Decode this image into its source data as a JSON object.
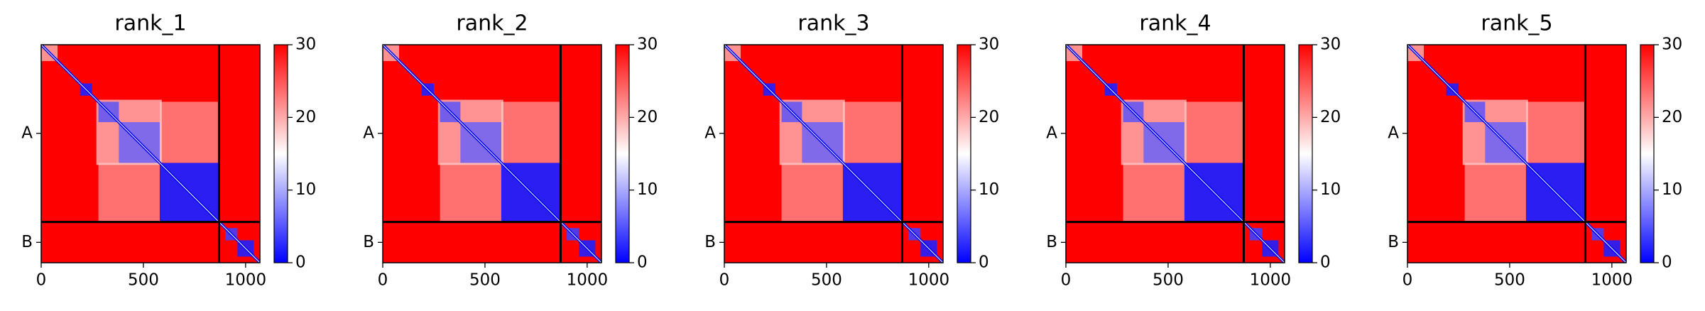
{
  "chart_data": [
    {
      "type": "heatmap",
      "title": "rank_1",
      "xlim": [
        0,
        1070
      ],
      "ylim": [
        1070,
        0
      ],
      "xticks": [
        0,
        500,
        1000
      ],
      "yticks": [
        {
          "value": 435,
          "label": "A"
        },
        {
          "value": 970,
          "label": "B"
        }
      ],
      "chain_breaks": [
        870
      ],
      "colorbar": {
        "lim": [
          0,
          30
        ],
        "ticks": [
          0,
          10,
          20,
          30
        ],
        "colors": [
          "#0000ff",
          "#ffffff",
          "#ff0000"
        ]
      }
    },
    {
      "type": "heatmap",
      "title": "rank_2",
      "xlim": [
        0,
        1070
      ],
      "ylim": [
        1070,
        0
      ],
      "xticks": [
        0,
        500,
        1000
      ],
      "yticks": [
        {
          "value": 435,
          "label": "A"
        },
        {
          "value": 970,
          "label": "B"
        }
      ],
      "chain_breaks": [
        870
      ],
      "colorbar": {
        "lim": [
          0,
          30
        ],
        "ticks": [
          0,
          10,
          20,
          30
        ],
        "colors": [
          "#0000ff",
          "#ffffff",
          "#ff0000"
        ]
      }
    },
    {
      "type": "heatmap",
      "title": "rank_3",
      "xlim": [
        0,
        1070
      ],
      "ylim": [
        1070,
        0
      ],
      "xticks": [
        0,
        500,
        1000
      ],
      "yticks": [
        {
          "value": 435,
          "label": "A"
        },
        {
          "value": 970,
          "label": "B"
        }
      ],
      "chain_breaks": [
        870
      ],
      "colorbar": {
        "lim": [
          0,
          30
        ],
        "ticks": [
          0,
          10,
          20,
          30
        ],
        "colors": [
          "#0000ff",
          "#ffffff",
          "#ff0000"
        ]
      }
    },
    {
      "type": "heatmap",
      "title": "rank_4",
      "xlim": [
        0,
        1070
      ],
      "ylim": [
        1070,
        0
      ],
      "xticks": [
        0,
        500,
        1000
      ],
      "yticks": [
        {
          "value": 435,
          "label": "A"
        },
        {
          "value": 970,
          "label": "B"
        }
      ],
      "chain_breaks": [
        870
      ],
      "colorbar": {
        "lim": [
          0,
          30
        ],
        "ticks": [
          0,
          10,
          20,
          30
        ],
        "colors": [
          "#0000ff",
          "#ffffff",
          "#ff0000"
        ]
      }
    },
    {
      "type": "heatmap",
      "title": "rank_5",
      "xlim": [
        0,
        1070
      ],
      "ylim": [
        1070,
        0
      ],
      "xticks": [
        0,
        500,
        1000
      ],
      "yticks": [
        {
          "value": 435,
          "label": "A"
        },
        {
          "value": 970,
          "label": "B"
        }
      ],
      "chain_breaks": [
        870
      ],
      "colorbar": {
        "lim": [
          0,
          30
        ],
        "ticks": [
          0,
          10,
          20,
          30
        ],
        "colors": [
          "#0000ff",
          "#ffffff",
          "#ff0000"
        ]
      }
    }
  ]
}
